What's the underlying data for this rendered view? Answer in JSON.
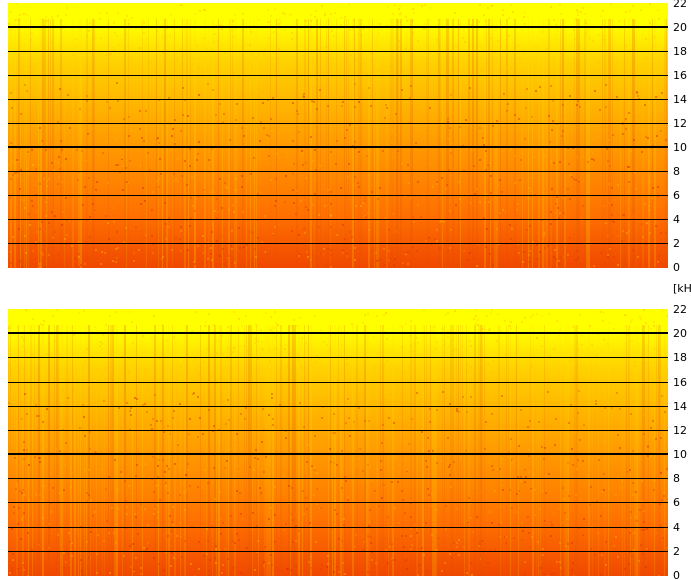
{
  "chart_data": [
    {
      "type": "heatmap",
      "ylabel": "[kHz]",
      "ylim": [
        0,
        22
      ],
      "yticks": [
        "22",
        "20",
        "18",
        "16",
        "14",
        "12",
        "10",
        "8",
        "6",
        "4",
        "2",
        "0"
      ],
      "grid": true,
      "colormap": [
        "#ffff00",
        "#ffd200",
        "#ffa000",
        "#ff7000",
        "#f04800"
      ]
    },
    {
      "type": "heatmap",
      "ylabel": "",
      "ylim": [
        0,
        22
      ],
      "yticks": [
        "22",
        "20",
        "18",
        "16",
        "14",
        "12",
        "10",
        "8",
        "6",
        "4",
        "2",
        "0"
      ],
      "grid": true,
      "colormap": [
        "#ffff00",
        "#ffd200",
        "#ffa000",
        "#ff7000",
        "#f04800"
      ]
    }
  ],
  "unit_label": "[kH"
}
